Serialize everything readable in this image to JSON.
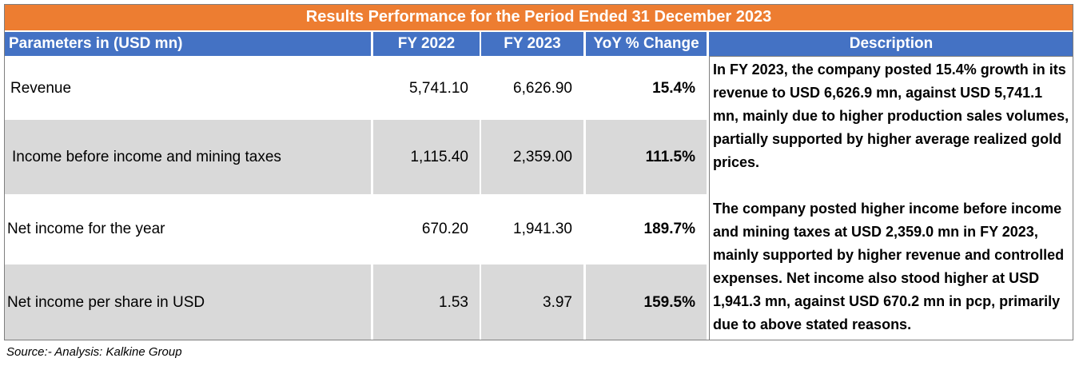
{
  "title": "Results Performance for the Period Ended 31 December 2023",
  "headers": {
    "parameters": "Parameters in (USD mn)",
    "fy2022": "FY 2022",
    "fy2023": "FY 2023",
    "yoy": "YoY % Change",
    "description": "Description"
  },
  "rows": [
    {
      "parameter": "Revenue",
      "fy2022": "5,741.10",
      "fy2023": "6,626.90",
      "yoy": "15.4%"
    },
    {
      "parameter": "Income before income and mining taxes",
      "fy2022": "1,115.40",
      "fy2023": "2,359.00",
      "yoy": "111.5%"
    },
    {
      "parameter": "Net income for the year",
      "fy2022": "670.20",
      "fy2023": "1,941.30",
      "yoy": "189.7%"
    },
    {
      "parameter": "Net income per share in USD",
      "fy2022": "1.53",
      "fy2023": "3.97",
      "yoy": "159.5%"
    }
  ],
  "description": {
    "para1": "In FY 2023, the company posted 15.4% growth in its revenue to USD 6,626.9 mn, against USD 5,741.1 mn, mainly due to higher production sales volumes, partially supported by higher average realized gold prices.",
    "para2": "The company posted higher income before income and mining taxes at USD 2,359.0 mn in FY 2023, mainly supported by higher revenue and controlled expenses. Net income also stood higher at USD 1,941.3 mn, against USD 670.2 mn in pcp, primarily due to above stated reasons."
  },
  "source": "Source:- Analysis: Kalkine Group",
  "colors": {
    "title_bg": "#ed7d31",
    "header_bg": "#4472c4",
    "shaded_row": "#d9d9d9"
  }
}
